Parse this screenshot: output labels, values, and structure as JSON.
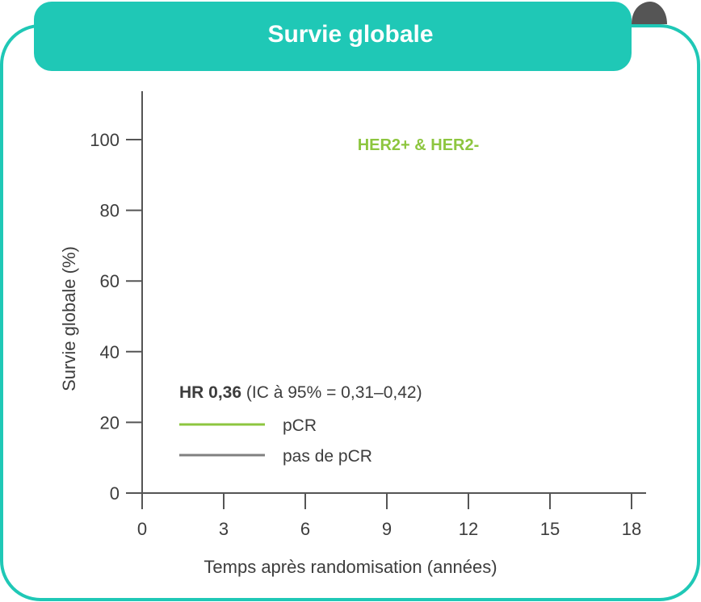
{
  "header": {
    "title": "Survie globale"
  },
  "chart_data": {
    "type": "line",
    "subtitle": "HER2+ & HER2-",
    "xlabel": "Temps après randomisation (années)",
    "ylabel": "Survie globale (%)",
    "xlim": [
      0,
      18
    ],
    "ylim": [
      0,
      100
    ],
    "x_ticks": [
      "0",
      "3",
      "6",
      "9",
      "12",
      "15",
      "18"
    ],
    "y_ticks": [
      "0",
      "20",
      "40",
      "60",
      "80",
      "100"
    ],
    "annotation": {
      "bold": "HR 0,36",
      "rest": " (IC à 95% = 0,31–0,42)"
    },
    "series": [
      {
        "name": "pCR",
        "color": "#8dc63f",
        "values": []
      },
      {
        "name": "pas de pCR",
        "color": "#808080",
        "values": []
      }
    ],
    "grid": false,
    "legend_position": "lower-left"
  },
  "colors": {
    "accent": "#1fc8b6",
    "text": "#3d3d3d",
    "subtitle": "#8dc63f",
    "curl": "#555555"
  }
}
